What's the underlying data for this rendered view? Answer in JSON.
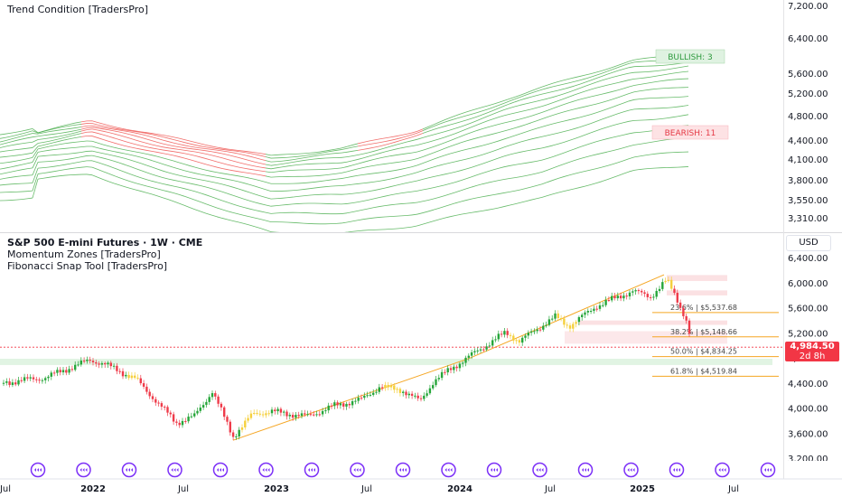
{
  "upper_pane": {
    "indicator_title": "Trend Condition [TradersPro]",
    "bullish_label": "BULLISH: 3",
    "bearish_label": "BEARISH: 11",
    "price_axis": [
      "7,200.00",
      "6,400.00",
      "5,600.00",
      "5,200.00",
      "4,800.00",
      "4,400.00",
      "4,100.00",
      "3,800.00",
      "3,550.00",
      "3,310.00"
    ]
  },
  "lower_pane": {
    "symbol_title": "S&P 500 E-mini Futures · 1W · CME",
    "indicator_1": "Momentum Zones [TradersPro]",
    "indicator_2": "Fibonacci Snap Tool [TradersPro]",
    "currency": "USD",
    "price_axis": [
      "6,400.00",
      "6,000.00",
      "5,600.00",
      "5,200.00",
      "4,800.00",
      "4,400.00",
      "4,000.00",
      "3,600.00",
      "3,200.00"
    ],
    "last_price": "4,984.50",
    "countdown": "2d 8h",
    "fib_levels": [
      {
        "label": "23.6% | $5,537.68",
        "price": 5537.68
      },
      {
        "label": "38.2% | $5,148.66",
        "price": 5148.66
      },
      {
        "label": "50.0% | $4,834.25",
        "price": 4834.25
      },
      {
        "label": "61.8% | $4,519.84",
        "price": 4519.84
      }
    ]
  },
  "time_axis": {
    "labels": [
      "Jul",
      "2022",
      "Jul",
      "2023",
      "Jul",
      "2024",
      "Jul",
      "2025",
      "Jul"
    ]
  },
  "colors": {
    "bull": "#26a63a",
    "bear": "#ef3b4a",
    "neutral": "#f5d03d",
    "ribbon_bull": "#4caf50",
    "ribbon_bear": "#ef5350",
    "fib_line": "#f5a623",
    "price_tag": "#f23645",
    "event_icon": "#7b2ff7"
  },
  "event_icons": {
    "name": "event-marker-icon",
    "count": 17
  }
}
